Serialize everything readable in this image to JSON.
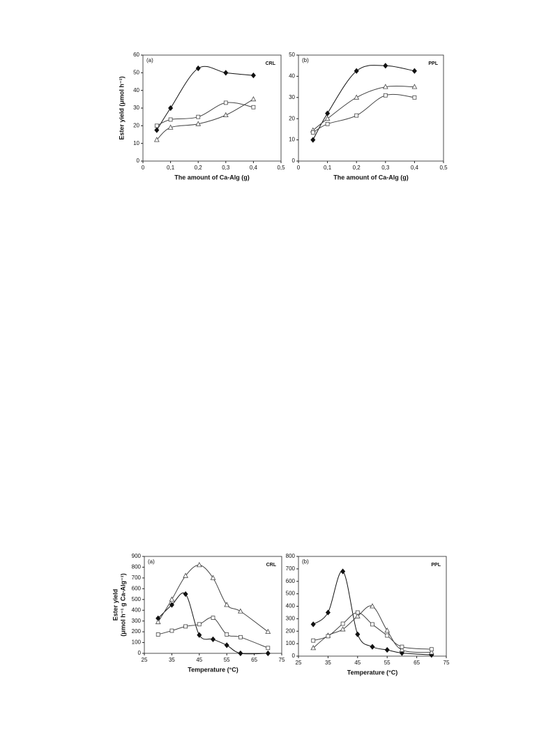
{
  "chart_data": [
    {
      "type": "line",
      "annotations": [
        "(a)",
        "CRL"
      ],
      "xlabel": "The amount of Ca-Alg (g)",
      "ylabel": [
        "Ester yield (μmol h⁻¹)"
      ],
      "x": [
        0.05,
        0.1,
        0.2,
        0.3,
        0.4
      ],
      "series": [
        {
          "color": "#111111",
          "marker": "diamond",
          "values": [
            17.5,
            30,
            52.5,
            50,
            48.5
          ]
        },
        {
          "color": "#444444",
          "marker": "square",
          "values": [
            20,
            23.5,
            25,
            33,
            30.5
          ]
        },
        {
          "color": "#444444",
          "marker": "triangle",
          "values": [
            12,
            19,
            21,
            26,
            35
          ]
        }
      ],
      "xlim": [
        0,
        0.5
      ],
      "xticks": [
        0,
        {
          "value": 0.1,
          "label": "0,1"
        },
        {
          "value": 0.2,
          "label": "0,2"
        },
        {
          "value": 0.3,
          "label": "0,3"
        },
        {
          "value": 0.4,
          "label": "0,4"
        },
        {
          "value": 0.5,
          "label": "0,5"
        }
      ],
      "ylim": [
        0,
        60
      ],
      "yticks": [
        0,
        10,
        20,
        30,
        40,
        50,
        60
      ]
    },
    {
      "type": "line",
      "annotations": [
        "(b)",
        "PPL"
      ],
      "xlabel": "The amount of Ca-Alg (g)",
      "ylabel": [],
      "x": [
        0.05,
        0.1,
        0.2,
        0.3,
        0.4
      ],
      "series": [
        {
          "color": "#111111",
          "marker": "diamond",
          "values": [
            10,
            22.5,
            42.5,
            45,
            42.5
          ]
        },
        {
          "color": "#444444",
          "marker": "triangle",
          "values": [
            14.5,
            20,
            30,
            35,
            35
          ]
        },
        {
          "color": "#444444",
          "marker": "square",
          "values": [
            13.5,
            17.5,
            21.5,
            31,
            30
          ]
        }
      ],
      "xlim": [
        0,
        0.5
      ],
      "xticks": [
        0,
        {
          "value": 0.1,
          "label": "0,1"
        },
        {
          "value": 0.2,
          "label": "0,2"
        },
        {
          "value": 0.3,
          "label": "0,3"
        },
        {
          "value": 0.4,
          "label": "0,4"
        },
        {
          "value": 0.5,
          "label": "0,5"
        }
      ],
      "ylim": [
        0,
        50
      ],
      "yticks": [
        0,
        10,
        20,
        30,
        40,
        50
      ]
    },
    {
      "type": "line",
      "annotations": [
        "(a)",
        "CRL"
      ],
      "xlabel": "Temperature (°C)",
      "ylabel": [
        "Ester yield",
        "(μmol h⁻¹ g Ca-Alg⁻¹)"
      ],
      "x": [
        30,
        35,
        40,
        45,
        50,
        55,
        60,
        70
      ],
      "series": [
        {
          "color": "#111111",
          "marker": "diamond",
          "values": [
            325,
            450,
            550,
            170,
            130,
            75,
            0,
            0
          ]
        },
        {
          "color": "#444444",
          "marker": "triangle",
          "values": [
            290,
            500,
            720,
            820,
            700,
            450,
            390,
            200
          ]
        },
        {
          "color": "#444444",
          "marker": "square",
          "values": [
            175,
            210,
            250,
            270,
            330,
            175,
            150,
            50
          ]
        }
      ],
      "xlim": [
        25,
        75
      ],
      "xticks": [
        25,
        35,
        45,
        55,
        65,
        75
      ],
      "ylim": [
        0,
        900
      ],
      "yticks": [
        0,
        100,
        200,
        300,
        400,
        500,
        600,
        700,
        800,
        900
      ]
    },
    {
      "type": "line",
      "annotations": [
        "(b)",
        "PPL"
      ],
      "xlabel": "Temperature (°C)",
      "ylabel": [],
      "x": [
        30,
        35,
        40,
        45,
        50,
        55,
        60,
        70
      ],
      "series": [
        {
          "color": "#111111",
          "marker": "diamond",
          "values": [
            255,
            350,
            680,
            175,
            75,
            50,
            25,
            10
          ]
        },
        {
          "color": "#444444",
          "marker": "triangle",
          "values": [
            65,
            165,
            215,
            320,
            400,
            205,
            50,
            30
          ]
        },
        {
          "color": "#444444",
          "marker": "square",
          "values": [
            125,
            160,
            260,
            350,
            255,
            165,
            75,
            55
          ]
        }
      ],
      "xlim": [
        25,
        75
      ],
      "xticks": [
        25,
        35,
        45,
        55,
        65,
        75
      ],
      "ylim": [
        0,
        800
      ],
      "yticks": [
        0,
        100,
        200,
        300,
        400,
        500,
        600,
        700,
        800
      ]
    }
  ]
}
